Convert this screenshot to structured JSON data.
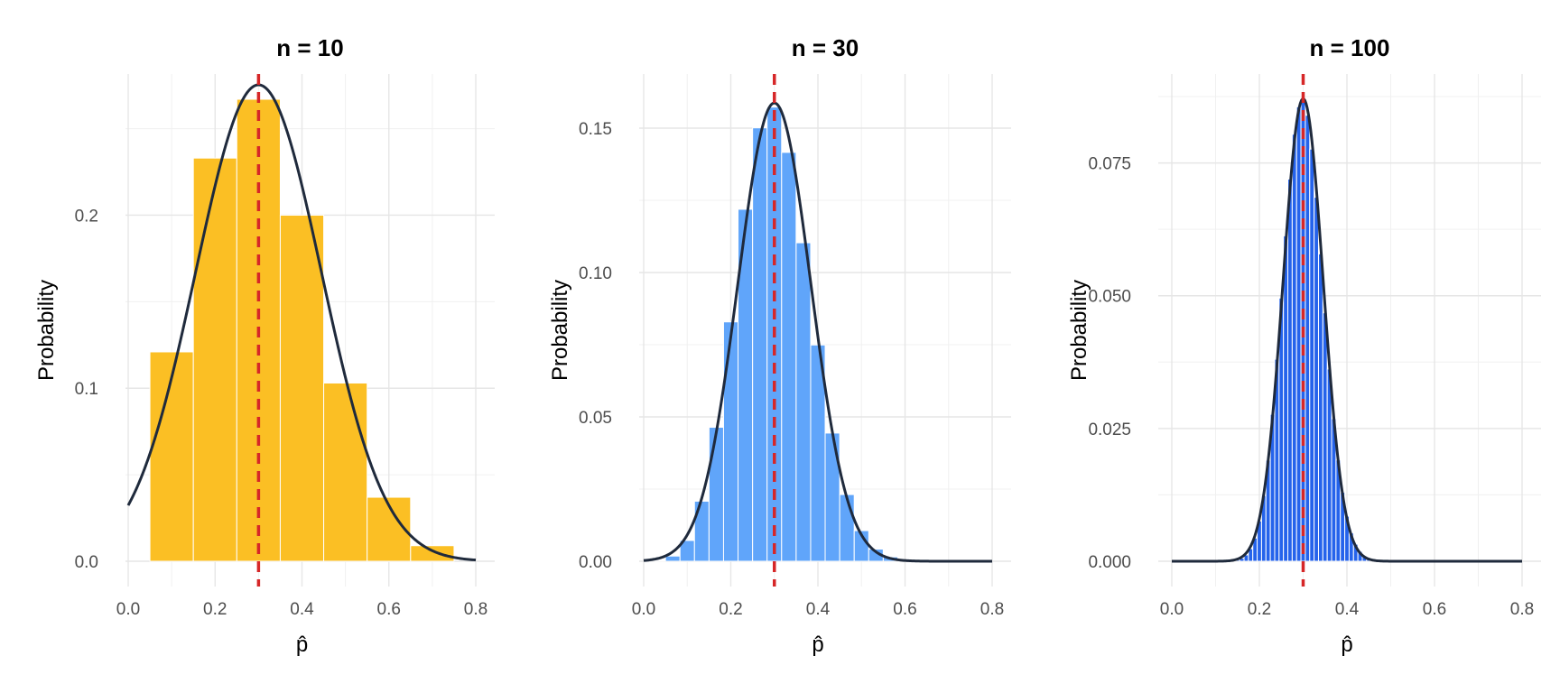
{
  "chart_data": [
    {
      "type": "bar",
      "title": "n = 10",
      "xlabel": "p̂",
      "ylabel": "Probability",
      "xlim": [
        0,
        0.8
      ],
      "ylim": [
        0,
        0.267
      ],
      "x_ticks": [
        "0.0",
        "0.2",
        "0.4",
        "0.6",
        "0.8"
      ],
      "y_ticks": [
        "0.0",
        "0.1",
        "0.2"
      ],
      "y_tick_values": [
        0,
        0.1,
        0.2
      ],
      "bar_color": "#FBBF24",
      "bars": [
        {
          "x": 0.1,
          "y": 0.121
        },
        {
          "x": 0.2,
          "y": 0.233
        },
        {
          "x": 0.3,
          "y": 0.267
        },
        {
          "x": 0.4,
          "y": 0.2
        },
        {
          "x": 0.5,
          "y": 0.103
        },
        {
          "x": 0.6,
          "y": 0.037
        },
        {
          "x": 0.7,
          "y": 0.009
        }
      ],
      "bar_width": 0.1,
      "curve": {
        "mean": 0.3,
        "sd": 0.1449,
        "scale": 0.1,
        "color": "#1F2A3C"
      },
      "reference_line": {
        "x": 0.3,
        "color": "#D62728",
        "style": "dashed"
      }
    },
    {
      "type": "bar",
      "title": "n = 30",
      "xlabel": "p̂",
      "ylabel": "Probability",
      "xlim": [
        0,
        0.8
      ],
      "ylim": [
        0,
        0.16
      ],
      "x_ticks": [
        "0.0",
        "0.2",
        "0.4",
        "0.6",
        "0.8"
      ],
      "y_ticks": [
        "0.00",
        "0.05",
        "0.10",
        "0.15"
      ],
      "y_tick_values": [
        0,
        0.05,
        0.1,
        0.15
      ],
      "bar_color": "#60A5FA",
      "bars": [
        {
          "x": 0.0333,
          "y": 0.0003
        },
        {
          "x": 0.0667,
          "y": 0.0018
        },
        {
          "x": 0.1,
          "y": 0.0072
        },
        {
          "x": 0.1333,
          "y": 0.0208
        },
        {
          "x": 0.1667,
          "y": 0.0464
        },
        {
          "x": 0.2,
          "y": 0.0829
        },
        {
          "x": 0.2333,
          "y": 0.1219
        },
        {
          "x": 0.2667,
          "y": 0.1501
        },
        {
          "x": 0.3,
          "y": 0.1573
        },
        {
          "x": 0.3333,
          "y": 0.1416
        },
        {
          "x": 0.3667,
          "y": 0.1103
        },
        {
          "x": 0.4,
          "y": 0.0749
        },
        {
          "x": 0.4333,
          "y": 0.0444
        },
        {
          "x": 0.4667,
          "y": 0.0231
        },
        {
          "x": 0.5,
          "y": 0.0106
        },
        {
          "x": 0.5333,
          "y": 0.0042
        },
        {
          "x": 0.5667,
          "y": 0.0015
        },
        {
          "x": 0.6,
          "y": 0.0005
        }
      ],
      "bar_width": 0.0333,
      "curve": {
        "mean": 0.3,
        "sd": 0.0837,
        "scale": 0.0333,
        "color": "#1F2A3C"
      },
      "reference_line": {
        "x": 0.3,
        "color": "#D62728",
        "style": "dashed"
      }
    },
    {
      "type": "bar",
      "title": "n = 100",
      "xlabel": "p̂",
      "ylabel": "Probability",
      "xlim": [
        0,
        0.8
      ],
      "ylim": [
        0,
        0.087
      ],
      "x_ticks": [
        "0.0",
        "0.2",
        "0.4",
        "0.6",
        "0.8"
      ],
      "y_ticks": [
        "0.000",
        "0.025",
        "0.050",
        "0.075"
      ],
      "y_tick_values": [
        0,
        0.025,
        0.05,
        0.075
      ],
      "bar_color": "#2563EB",
      "bars_from_binomial": {
        "n": 100,
        "p": 0.3,
        "x_min": 0.14,
        "x_max": 0.47
      },
      "bar_width": 0.01,
      "curve": {
        "mean": 0.3,
        "sd": 0.0458,
        "scale": 0.01,
        "color": "#1F2A3C"
      },
      "reference_line": {
        "x": 0.3,
        "color": "#D62728",
        "style": "dashed"
      }
    }
  ]
}
